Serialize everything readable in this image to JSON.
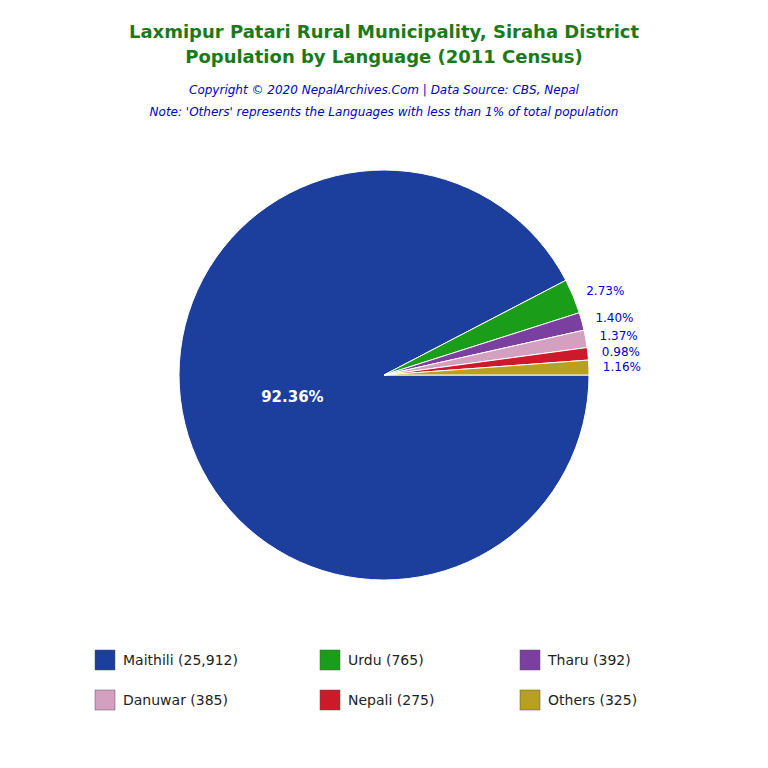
{
  "chart_data": {
    "type": "pie",
    "title": "Laxmipur Patari Rural Municipality, Siraha District",
    "subtitle": "Population by Language (2011 Census)",
    "annotations": [
      "Copyright © 2020 NepalArchives.Com | Data Source: CBS, Nepal",
      "Note: 'Others' represents the Languages with less than 1% of total population"
    ],
    "categories": [
      "Maithili (25,912)",
      "Urdu (765)",
      "Tharu (392)",
      "Danuwar (385)",
      "Nepali (275)",
      "Others (325)"
    ],
    "values": [
      92.36,
      2.73,
      1.4,
      1.37,
      0.98,
      1.16
    ],
    "value_labels": [
      "92.36%",
      "2.73%",
      "1.40%",
      "1.37%",
      "0.98%",
      "1.16%"
    ],
    "colors": [
      "#1c3f9e",
      "#1a9e1a",
      "#7b3fa0",
      "#d4a0c0",
      "#cc1a2a",
      "#b8a020"
    ],
    "data_labels": true,
    "legend": "bottom"
  }
}
